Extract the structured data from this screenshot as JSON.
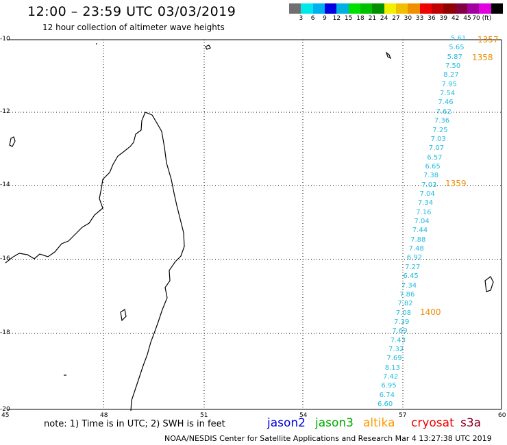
{
  "header": {
    "title": "12:00 – 23:59 UTC 03/03/2019",
    "subtitle": "12 hour collection of altimeter wave heights"
  },
  "color_scale": {
    "colors": [
      "#707070",
      "#00e8e8",
      "#00b0f0",
      "#0000e0",
      "#00b0e0",
      "#00e000",
      "#00c000",
      "#009000",
      "#f0f000",
      "#f0c000",
      "#f09000",
      "#f00000",
      "#c00000",
      "#900000",
      "#800040",
      "#a000a0",
      "#e000e0",
      "#000000"
    ],
    "labels": [
      "3",
      "6",
      "9",
      "12",
      "15",
      "18",
      "21",
      "24",
      "27",
      "30",
      "33",
      "36",
      "39",
      "42",
      "45",
      "70 (ft)"
    ]
  },
  "axes": {
    "lat_labels": [
      "-10",
      "-12",
      "-14",
      "-16",
      "-18",
      "-20"
    ],
    "lon_labels": [
      "45",
      "48",
      "51",
      "54",
      "57",
      "60"
    ]
  },
  "swh_values": [
    "5.61",
    "5.65",
    "5.87",
    "7.50",
    "8.27",
    "7.95",
    "7.54",
    "7.46",
    "7.62",
    "7.36",
    "7.25",
    "7.03",
    "7.07",
    "6.57",
    "6.65",
    "7.38",
    "7.03",
    "7.04",
    "7.34",
    "7.16",
    "7.04",
    "7.44",
    "7.88",
    "7.48",
    "6.92",
    "7.27",
    "6.45",
    "7.34",
    "7.86",
    "7.82",
    "7.08",
    "7.39",
    "7.69",
    "7.43",
    "7.32",
    "7.69",
    "8.13",
    "7.42",
    "6.95",
    "6.74",
    "6.60"
  ],
  "times": [
    "1357",
    "1358",
    "1359",
    "1400"
  ],
  "note": "note:  1) Time is in UTC;  2) SWH is in feet",
  "legend": [
    {
      "name": "jason2",
      "color": "#0000dd"
    },
    {
      "name": "jason3",
      "color": "#00aa00"
    },
    {
      "name": "altika",
      "color": "#ff9900"
    },
    {
      "name": "cryosat",
      "color": "#ee0000"
    },
    {
      "name": "s3a",
      "color": "#880022"
    }
  ],
  "footer": "NOAA/NESDIS Center for Satellite Applications and Research   Mar  4 13:27:38 UTC 2019"
}
